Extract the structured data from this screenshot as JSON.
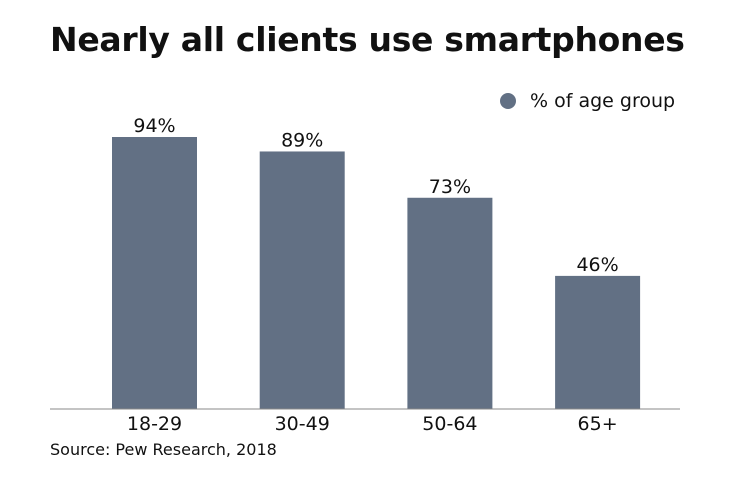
{
  "chart_data": {
    "type": "bar",
    "title": "Nearly all clients use smartphones",
    "categories": [
      "18-29",
      "30-49",
      "50-64",
      "65+"
    ],
    "series": [
      {
        "name": "% of age group",
        "values": [
          94,
          89,
          73,
          46
        ]
      }
    ],
    "data_labels": [
      "94%",
      "89%",
      "73%",
      "46%"
    ],
    "ylim": [
      0,
      100
    ],
    "grid": false,
    "legend_position": "top-right",
    "bar_color": "#627084",
    "source": "Source: Pew Research, 2018"
  }
}
